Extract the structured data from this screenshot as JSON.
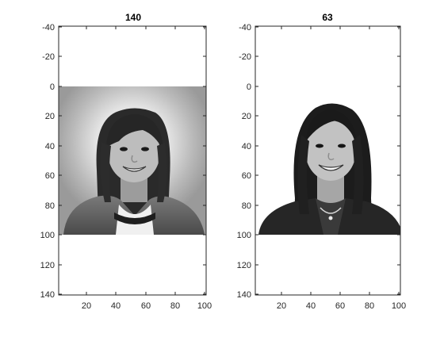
{
  "figure": {
    "panels": [
      {
        "title": "140",
        "image_description": "grayscale portrait photo of a smiling young girl with shoulder-length dark hair and a bright halo behind her head, wearing a denim jacket over a light shirt; image spans rows 0–100",
        "x_ticks": [
          "20",
          "40",
          "60",
          "80",
          "100"
        ],
        "y_ticks": [
          "-40",
          "-20",
          "0",
          "20",
          "40",
          "60",
          "80",
          "100",
          "120",
          "140"
        ]
      },
      {
        "title": "63",
        "image_description": "grayscale portrait photo of a smiling young woman with long dark hair on a white background, wearing a dark blazer and a necklace; image spans rows 0–100",
        "x_ticks": [
          "20",
          "40",
          "60",
          "80",
          "100"
        ],
        "y_ticks": [
          "-40",
          "-20",
          "0",
          "20",
          "40",
          "60",
          "80",
          "100",
          "120",
          "140"
        ]
      }
    ]
  },
  "colors": {
    "axis": "#262626",
    "background": "#ffffff"
  }
}
